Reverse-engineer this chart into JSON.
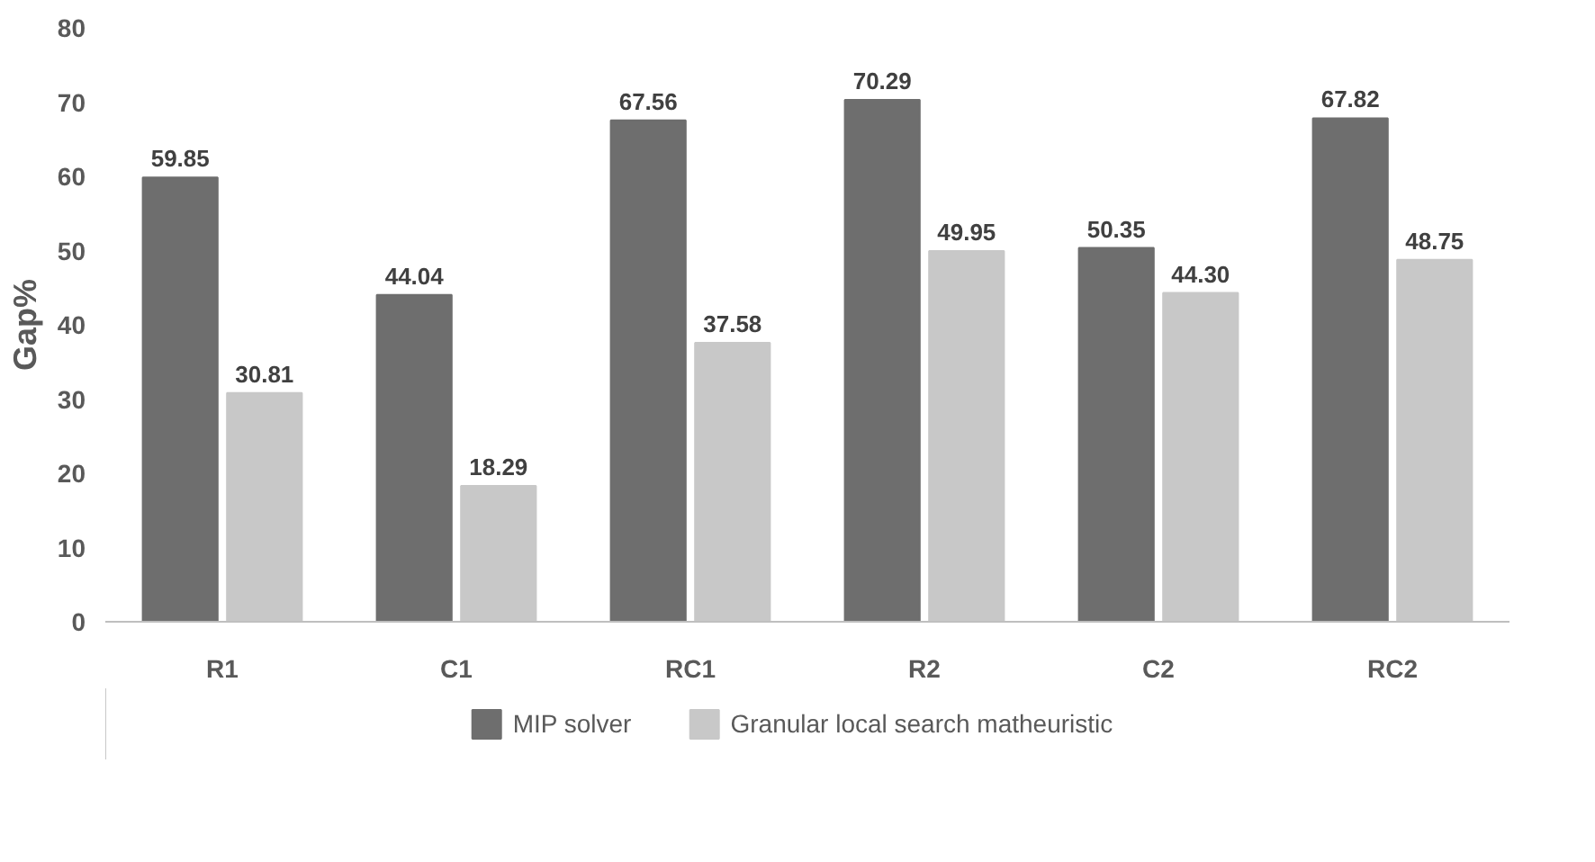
{
  "chart_data": {
    "type": "bar",
    "ylabel": "Gap%",
    "categories": [
      "R1",
      "C1",
      "RC1",
      "R2",
      "C2",
      "RC2"
    ],
    "series": [
      {
        "name": "MIP solver",
        "color": "#6e6e6e",
        "values": [
          59.85,
          44.04,
          67.56,
          70.29,
          50.35,
          67.82
        ],
        "value_labels": [
          "59.85",
          "44.04",
          "67.56",
          "70.29",
          "50.35",
          "67.82"
        ]
      },
      {
        "name": "Granular local search matheuristic",
        "color": "#c8c8c8",
        "values": [
          30.81,
          18.29,
          37.58,
          49.95,
          44.3,
          48.75
        ],
        "value_labels": [
          "30.81",
          "18.29",
          "37.58",
          "49.95",
          "44.30",
          "48.75"
        ]
      }
    ],
    "ylim": [
      0,
      80
    ],
    "yticks": [
      0,
      10,
      20,
      30,
      40,
      50,
      60,
      70,
      80
    ],
    "grid": false,
    "legend": "bottom"
  }
}
